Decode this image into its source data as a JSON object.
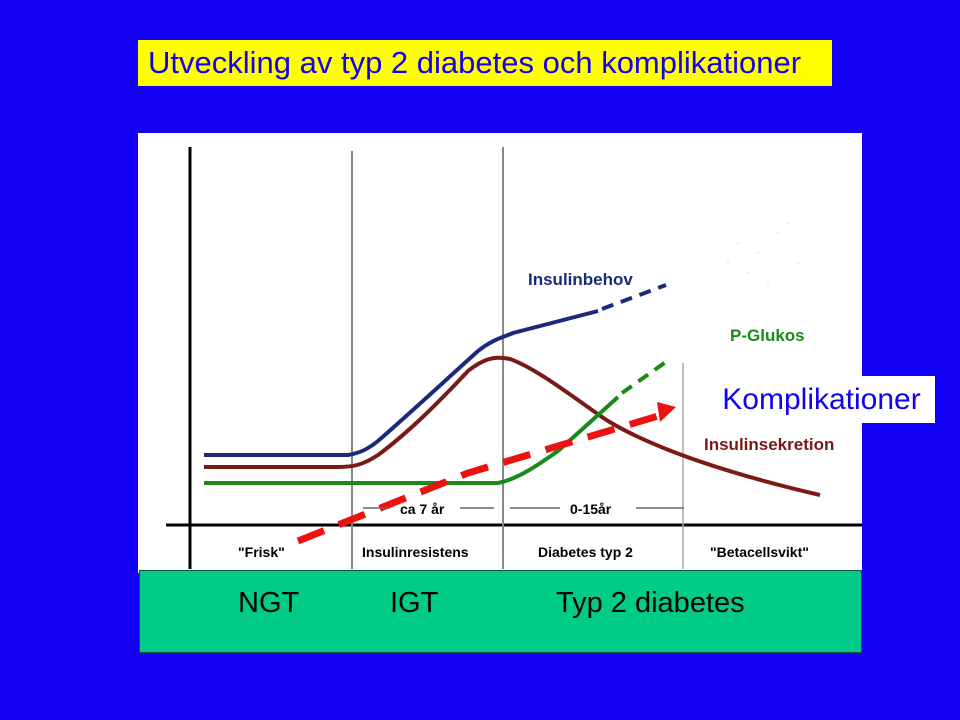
{
  "title": "Utveckling av typ 2 diabetes och komplikationer",
  "complications_label": "Komplikationer",
  "curve_labels": {
    "insulinbehov": "Insulinbehov",
    "p_glukos": "P-Glukos",
    "insulinsekretion": "Insulinsekretion"
  },
  "durations": {
    "igt": "ca 7 år",
    "diabetes": "0-15år"
  },
  "phase_labels": [
    "\"Frisk\"",
    "Insulinresistens",
    "Diabetes typ 2",
    "\"Betacellsvikt\""
  ],
  "stages": {
    "ngt": "NGT",
    "igt": "IGT",
    "t2d": "Typ 2 diabetes"
  },
  "colors": {
    "background": "#1400f5",
    "title_bg": "#ffff00",
    "insulinbehov": "#1a2a7a",
    "p_glukos": "#1a8a1a",
    "insulinsekretion": "#7a1a14",
    "komplikationer": "#ee1111",
    "stage_band": "#00cc88"
  }
}
